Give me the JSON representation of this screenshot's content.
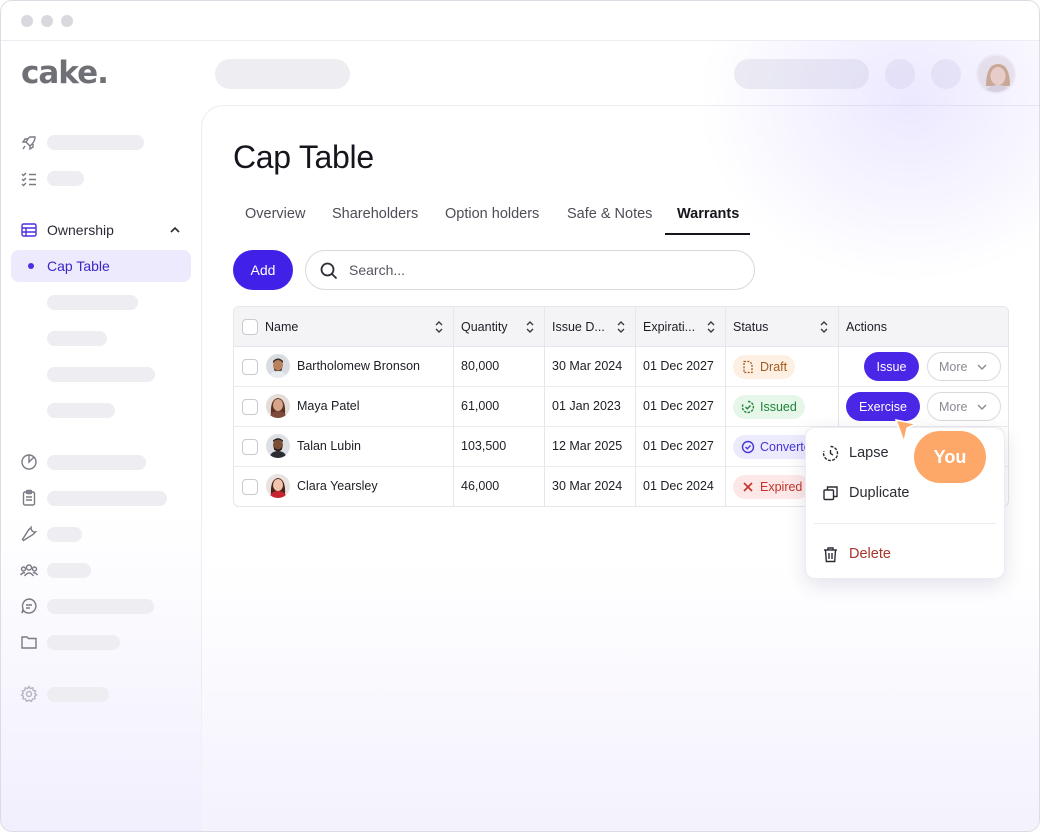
{
  "app": {
    "logo_text": "cake."
  },
  "sidebar": {
    "ownership_label": "Ownership",
    "cap_table_label": "Cap Table"
  },
  "page": {
    "title": "Cap Table"
  },
  "tabs": [
    {
      "label": "Overview"
    },
    {
      "label": "Shareholders"
    },
    {
      "label": "Option holders"
    },
    {
      "label": "Safe & Notes"
    },
    {
      "label": "Warrants",
      "active": true
    }
  ],
  "toolbar": {
    "add_label": "Add",
    "search_placeholder": "Search..."
  },
  "table": {
    "columns": [
      "Name",
      "Quantity",
      "Issue D...",
      "Expirati...",
      "Status",
      "Actions"
    ],
    "rows": [
      {
        "name": "Bartholomew Bronson",
        "quantity": "80,000",
        "issue_date": "30 Mar 2024",
        "expiration": "01 Dec 2027",
        "status": "Draft",
        "action": "Issue",
        "more": "More"
      },
      {
        "name": "Maya Patel",
        "quantity": "61,000",
        "issue_date": "01 Jan 2023",
        "expiration": "01 Dec 2027",
        "status": "Issued",
        "action": "Exercise",
        "more": "More"
      },
      {
        "name": "Talan Lubin",
        "quantity": "103,500",
        "issue_date": "12 Mar 2025",
        "expiration": "01 Dec 2027",
        "status": "Converted"
      },
      {
        "name": "Clara Yearsley",
        "quantity": "46,000",
        "issue_date": "30 Mar 2024",
        "expiration": "01 Dec 2024",
        "status": "Expired"
      }
    ]
  },
  "menu": {
    "items": [
      {
        "label": "Lapse",
        "icon": "lapse-icon"
      },
      {
        "label": "Duplicate",
        "icon": "duplicate-icon"
      },
      {
        "label": "Delete",
        "icon": "trash-icon"
      }
    ]
  },
  "cursor_label": "You",
  "colors": {
    "accent": "#4120e8",
    "cursor": "#fda768",
    "danger": "#a8342c"
  }
}
